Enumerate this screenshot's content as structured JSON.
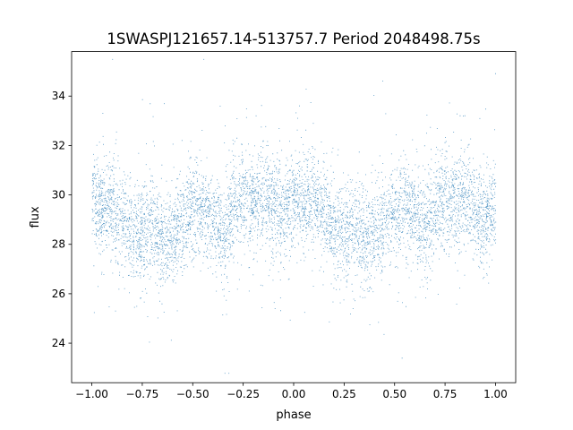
{
  "chart_data": {
    "type": "scatter",
    "title": "1SWASPJ121657.14-513757.7 Period 2048498.75s",
    "xlabel": "phase",
    "ylabel": "flux",
    "xlim": [
      -1.1,
      1.1
    ],
    "ylim": [
      22.4,
      35.8
    ],
    "xticks": [
      -1.0,
      -0.75,
      -0.5,
      -0.25,
      0.0,
      0.25,
      0.5,
      0.75,
      1.0
    ],
    "xtick_labels": [
      "−1.00",
      "−0.75",
      "−0.50",
      "−0.25",
      "0.00",
      "0.25",
      "0.50",
      "0.75",
      "1.00"
    ],
    "yticks": [
      24,
      26,
      28,
      30,
      32,
      34
    ],
    "ytick_labels": [
      "24",
      "26",
      "28",
      "30",
      "32",
      "34"
    ],
    "grid": false,
    "marker_color": "#1f77b4",
    "series": [
      {
        "points_description_note": "",
        "x": [
          -1.0,
          -0.95,
          -0.9,
          -0.85,
          -0.8,
          -0.75,
          -0.7,
          -0.65,
          -0.6,
          -0.55,
          -0.5,
          -0.45,
          -0.4,
          -0.35,
          -0.3,
          -0.25,
          -0.2,
          -0.15,
          -0.1,
          -0.05,
          0.0,
          0.05,
          0.1,
          0.15,
          0.2,
          0.25,
          0.3,
          0.35,
          0.4,
          0.45,
          0.5,
          0.55,
          0.6,
          0.65,
          0.7,
          0.75,
          0.8,
          0.85,
          0.9,
          0.95,
          1.0
        ],
        "y": [
          29.8,
          29.5,
          29.6,
          29.0,
          28.3,
          28.6,
          28.8,
          28.2,
          28.4,
          28.9,
          29.3,
          29.4,
          29.0,
          28.5,
          29.4,
          29.8,
          29.7,
          30.0,
          29.6,
          29.2,
          29.7,
          29.6,
          29.8,
          29.2,
          28.5,
          28.6,
          28.8,
          28.2,
          28.5,
          28.8,
          29.3,
          29.4,
          29.0,
          28.6,
          29.3,
          29.9,
          29.7,
          30.0,
          29.5,
          29.1,
          29.7
        ]
      }
    ]
  }
}
